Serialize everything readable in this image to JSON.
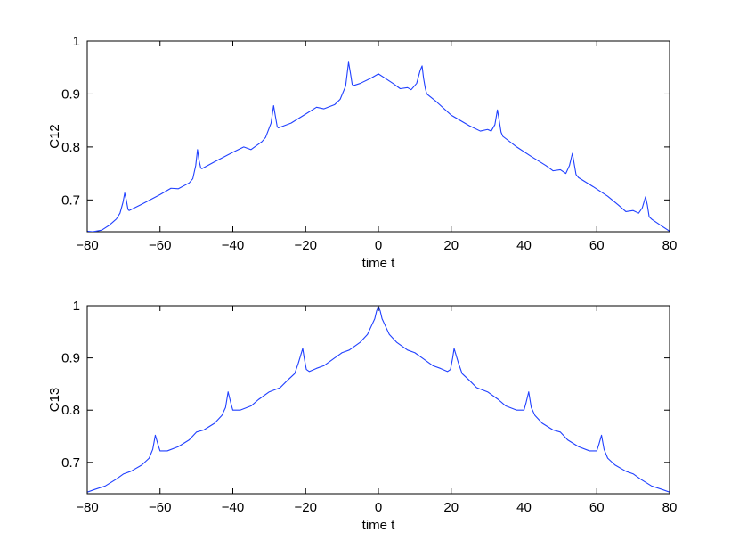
{
  "chart_data": [
    {
      "type": "line",
      "title": "",
      "xlabel": "time t",
      "ylabel": "C12",
      "xlim": [
        -80,
        80
      ],
      "ylim": [
        0.64,
        1.0
      ],
      "xticks": [
        -80,
        -60,
        -40,
        -20,
        0,
        20,
        40,
        60,
        80
      ],
      "xtick_labels": [
        "−80",
        "−60",
        "−40",
        "−20",
        "0",
        "20",
        "40",
        "60",
        "80"
      ],
      "yticks": [
        0.7,
        0.8,
        0.9,
        1.0
      ],
      "ytick_labels": [
        "0.7",
        "0.8",
        "0.9",
        "1"
      ],
      "grid": false,
      "color": "#2040ff",
      "series": [
        {
          "x": [
            -80,
            -78.5,
            -76,
            -74,
            -72,
            -71,
            -70.2,
            -69.7,
            -69.3,
            -68.8,
            -68.5,
            -65,
            -60,
            -57,
            -55,
            -52,
            -51,
            -50.2,
            -49.7,
            -49.3,
            -48.8,
            -48.5,
            -45,
            -40,
            -37,
            -35,
            -32,
            -31,
            -29.5,
            -28.8,
            -28.3,
            -27.8,
            -27.5,
            -24,
            -20,
            -17,
            -15,
            -12,
            -10.5,
            -9,
            -8.2,
            -7.7,
            -7.2,
            -6.8,
            -5,
            -2,
            0,
            2,
            4,
            6,
            8,
            9,
            10.5,
            11.5,
            12,
            12.4,
            12.9,
            13.3,
            16,
            20,
            25,
            28,
            30,
            31,
            32,
            32.7,
            33.2,
            33.7,
            34.2,
            38,
            42,
            46,
            48,
            50,
            51.5,
            52.5,
            53.3,
            53.8,
            54.3,
            55,
            59,
            63,
            66,
            68,
            70,
            71.5,
            72.5,
            73.4,
            73.9,
            74.4,
            75.2,
            78,
            80
          ],
          "y": [
            0.641,
            0.64,
            0.643,
            0.652,
            0.664,
            0.675,
            0.695,
            0.713,
            0.701,
            0.682,
            0.68,
            0.692,
            0.71,
            0.722,
            0.721,
            0.732,
            0.74,
            0.765,
            0.795,
            0.775,
            0.76,
            0.759,
            0.772,
            0.79,
            0.8,
            0.795,
            0.81,
            0.818,
            0.845,
            0.878,
            0.858,
            0.838,
            0.836,
            0.845,
            0.862,
            0.875,
            0.872,
            0.88,
            0.89,
            0.915,
            0.96,
            0.94,
            0.918,
            0.916,
            0.92,
            0.93,
            0.938,
            0.929,
            0.92,
            0.91,
            0.912,
            0.908,
            0.92,
            0.945,
            0.953,
            0.93,
            0.91,
            0.9,
            0.885,
            0.86,
            0.84,
            0.83,
            0.833,
            0.83,
            0.842,
            0.87,
            0.85,
            0.828,
            0.82,
            0.8,
            0.782,
            0.765,
            0.755,
            0.757,
            0.75,
            0.765,
            0.788,
            0.768,
            0.748,
            0.742,
            0.725,
            0.707,
            0.69,
            0.678,
            0.68,
            0.675,
            0.685,
            0.706,
            0.69,
            0.668,
            0.663,
            0.65,
            0.641
          ]
        }
      ]
    },
    {
      "type": "line",
      "title": "",
      "xlabel": "time t",
      "ylabel": "C13",
      "xlim": [
        -80,
        80
      ],
      "ylim": [
        0.64,
        1.0
      ],
      "xticks": [
        -80,
        -60,
        -40,
        -20,
        0,
        20,
        40,
        60,
        80
      ],
      "xtick_labels": [
        "−80",
        "−60",
        "−40",
        "−20",
        "0",
        "20",
        "40",
        "60",
        "80"
      ],
      "yticks": [
        0.7,
        0.8,
        0.9,
        1.0
      ],
      "ytick_labels": [
        "0.7",
        "0.8",
        "0.9",
        "1"
      ],
      "grid": false,
      "color": "#2040ff",
      "series": [
        {
          "x": [
            -80,
            -78,
            -75,
            -72,
            -70,
            -68,
            -65,
            -63,
            -62,
            -61.3,
            -60.6,
            -60,
            -58,
            -55,
            -52,
            -50,
            -48,
            -45,
            -43,
            -42,
            -41.3,
            -40.6,
            -40,
            -38,
            -35,
            -33,
            -30,
            -27,
            -25,
            -23,
            -22,
            -20.8,
            -20.4,
            -19.8,
            -19,
            -17,
            -15,
            -12,
            -10,
            -8,
            -5,
            -3,
            -2,
            -1,
            -0.5,
            0,
            0.5,
            1,
            2,
            3,
            5,
            8,
            10,
            12,
            15,
            17,
            19,
            19.8,
            20.4,
            20.8,
            22,
            23,
            25,
            27,
            30,
            33,
            35,
            38,
            40,
            40.6,
            41.3,
            42,
            43,
            45,
            48,
            50,
            52,
            55,
            58,
            60,
            60.6,
            61.3,
            62,
            63,
            65,
            68,
            70,
            72,
            75,
            78,
            80
          ],
          "y": [
            0.643,
            0.648,
            0.655,
            0.668,
            0.678,
            0.683,
            0.695,
            0.708,
            0.725,
            0.752,
            0.735,
            0.722,
            0.722,
            0.73,
            0.743,
            0.758,
            0.762,
            0.775,
            0.79,
            0.805,
            0.835,
            0.815,
            0.8,
            0.8,
            0.808,
            0.82,
            0.835,
            0.843,
            0.857,
            0.87,
            0.89,
            0.918,
            0.9,
            0.878,
            0.874,
            0.88,
            0.885,
            0.9,
            0.91,
            0.915,
            0.93,
            0.945,
            0.96,
            0.975,
            0.99,
            0.998,
            0.99,
            0.975,
            0.96,
            0.945,
            0.93,
            0.915,
            0.91,
            0.9,
            0.885,
            0.88,
            0.874,
            0.878,
            0.9,
            0.918,
            0.89,
            0.87,
            0.857,
            0.843,
            0.835,
            0.82,
            0.808,
            0.8,
            0.8,
            0.815,
            0.835,
            0.805,
            0.79,
            0.775,
            0.762,
            0.758,
            0.743,
            0.73,
            0.722,
            0.722,
            0.735,
            0.752,
            0.725,
            0.708,
            0.695,
            0.683,
            0.678,
            0.668,
            0.655,
            0.648,
            0.643
          ]
        }
      ]
    }
  ]
}
